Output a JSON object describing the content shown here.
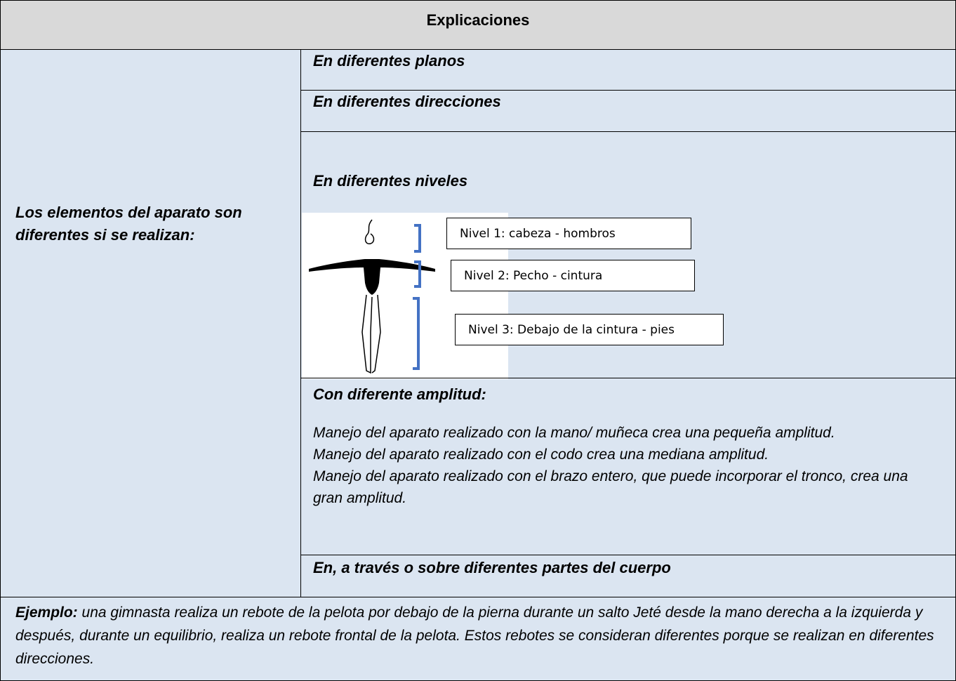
{
  "header": {
    "title": "Explicaciones"
  },
  "left_label": {
    "lines": [
      "Los elementos del aparato son",
      "diferentes si se realizan:"
    ]
  },
  "rows": [
    {
      "title": "En diferentes planos"
    },
    {
      "title": "En diferentes direcciones"
    },
    {
      "title": "En diferentes niveles",
      "levels": [
        "Nivel 1: cabeza - hombros",
        "Nivel 2: Pecho - cintura",
        "Nivel 3: Debajo de la cintura - pies"
      ]
    },
    {
      "title": "Con diferente amplitud:",
      "paragraphs": [
        "Manejo del aparato realizado con la mano/ muñeca crea una pequeña amplitud.",
        "Manejo del aparato realizado con el codo crea una mediana amplitud.",
        "Manejo del aparato realizado con el brazo entero, que puede incorporar el tronco, crea una gran amplitud."
      ]
    },
    {
      "title": "En, a través o sobre diferentes partes del cuerpo"
    }
  ],
  "example": {
    "label": "Ejemplo:",
    "text": " una gimnasta realiza un rebote de la pelota por debajo de la pierna durante un salto Jeté desde la mano derecha a la izquierda y después, durante un equilibrio, realiza un rebote frontal de la pelota. Estos rebotes se consideran diferentes porque se realizan en diferentes direcciones."
  }
}
